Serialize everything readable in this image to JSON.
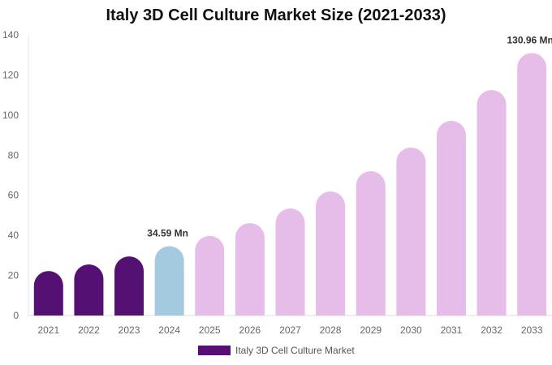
{
  "chart_data": {
    "type": "bar",
    "title": "Italy 3D Cell Culture Market Size (2021-2033)",
    "xlabel": "",
    "ylabel": "",
    "ylim": [
      0,
      140
    ],
    "yticks": [
      0,
      20,
      40,
      60,
      80,
      100,
      120,
      140
    ],
    "grid": false,
    "categories": [
      "2021",
      "2022",
      "2023",
      "2024",
      "2025",
      "2026",
      "2027",
      "2028",
      "2029",
      "2030",
      "2031",
      "2032",
      "2033"
    ],
    "series": [
      {
        "name": "Italy 3D Cell Culture Market",
        "values": [
          22.2,
          25.5,
          29.5,
          34.59,
          39.7,
          46.1,
          53.4,
          61.9,
          72.0,
          83.8,
          97.1,
          112.5,
          130.96
        ]
      }
    ],
    "bar_colors": {
      "historical": "#541173",
      "base_year": "#a3cadf",
      "forecast": "#e6bce8"
    },
    "bar_color_groups": [
      "historical",
      "historical",
      "historical",
      "base_year",
      "forecast",
      "forecast",
      "forecast",
      "forecast",
      "forecast",
      "forecast",
      "forecast",
      "forecast",
      "forecast"
    ],
    "annotations": [
      {
        "index": 3,
        "text": "34.59 Mn"
      },
      {
        "index": 12,
        "text": "130.96 Mn"
      }
    ],
    "legend": {
      "position": "bottom",
      "label": "Italy 3D Cell Culture Market",
      "color": "#541173"
    }
  }
}
